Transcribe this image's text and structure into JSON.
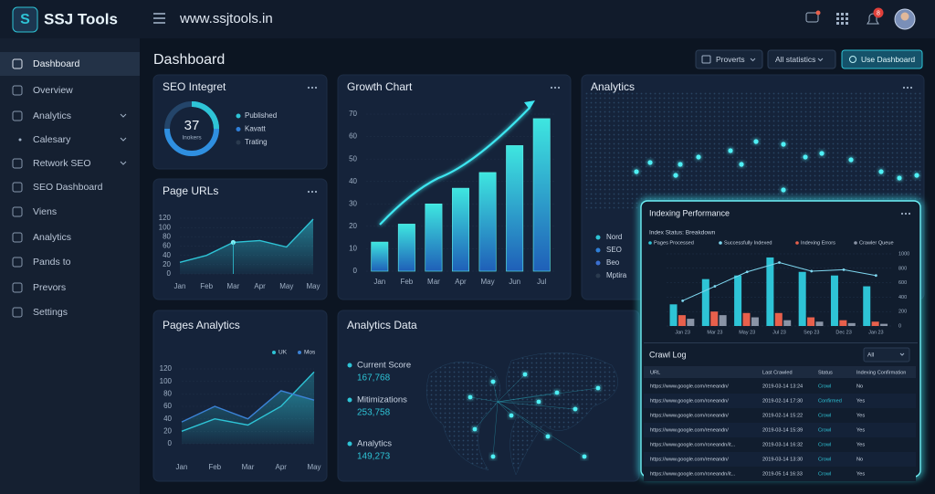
{
  "header": {
    "logo": "SSJ Tools",
    "url": "www.ssjtools.in",
    "notifications": 8
  },
  "sidebar": {
    "items": [
      "Dashboard",
      "Overview",
      "Analytics",
      "Calesary",
      "Retwork SEO",
      "SEO Dashboard",
      "Viens",
      "Analytics",
      "Pands to",
      "Prevors",
      "Settings"
    ]
  },
  "page": {
    "title": "Dashboard",
    "filters": [
      "Proverts",
      "All statistics"
    ],
    "action": "Use Dashboard"
  },
  "seo_integret": {
    "title": "SEO Integret",
    "score": 37,
    "score_label": "Inokers",
    "legend": [
      {
        "name": "Published",
        "color": "#2ec4d6"
      },
      {
        "name": "Kavatt",
        "color": "#2f7fd8"
      },
      {
        "name": "Trating",
        "color": "#2a3a4e"
      }
    ]
  },
  "page_urls": {
    "chart_data": {
      "type": "area",
      "title": "Page URLs",
      "categories": [
        "Jan",
        "Feb",
        "Mar",
        "Apr",
        "May",
        "May"
      ],
      "values": [
        25,
        40,
        68,
        72,
        58,
        118
      ],
      "color": "#2ec4d6",
      "ylim": [
        0,
        120
      ],
      "yticks": [
        0,
        20,
        40,
        60,
        80,
        100,
        120
      ]
    }
  },
  "growth_chart": {
    "chart_data": {
      "type": "bar",
      "title": "Growth Chart",
      "categories": [
        "Jan",
        "Feb",
        "Mar",
        "Apr",
        "May",
        "Jun",
        "Jul"
      ],
      "values": [
        13,
        21,
        30,
        37,
        44,
        56,
        68
      ],
      "color": "#2ec4d6",
      "ylim": [
        0,
        70
      ],
      "yticks": [
        0,
        10,
        20,
        30,
        40,
        50,
        60,
        70
      ]
    }
  },
  "analytics_map": {
    "title": "Analytics",
    "legend": [
      {
        "name": "Nord",
        "color": "#2ec4d6"
      },
      {
        "name": "SEO",
        "color": "#2f7fd8"
      },
      {
        "name": "Beo",
        "color": "#3b6fd0"
      },
      {
        "name": "Mptira",
        "color": "#2a3a4e"
      }
    ]
  },
  "pages_analytics": {
    "chart_data": {
      "type": "line",
      "title": "Pages Analytics",
      "categories": [
        "Jan",
        "Feb",
        "Mar",
        "Apr",
        "May"
      ],
      "series": [
        {
          "name": "UK",
          "color": "#2ec4d6",
          "values": [
            20,
            40,
            30,
            60,
            115
          ]
        },
        {
          "name": "Mos",
          "color": "#3b82d6",
          "values": [
            35,
            60,
            40,
            85,
            70
          ]
        }
      ],
      "ylim": [
        0,
        120
      ],
      "yticks": [
        0,
        20,
        40,
        60,
        80,
        100,
        120
      ]
    }
  },
  "analytics_data": {
    "title": "Analytics Data",
    "stats": [
      {
        "label": "Current Score",
        "value": "167,768"
      },
      {
        "label": "Mitimizations",
        "value": "253,758"
      },
      {
        "label": "Analytics",
        "value": "149,273"
      }
    ]
  },
  "indexing_performance": {
    "chart_data": {
      "type": "bar-line",
      "title": "Indexing Performance",
      "subtitle": "Index Status: Breakdown",
      "categories": [
        "Jan 23",
        "Mar 23",
        "May 23",
        "Jul 23",
        "Sep 23",
        "Dec 23",
        "Jan 23"
      ],
      "series": [
        {
          "name": "Pages Processed",
          "color": "#2ec4d6",
          "values": [
            300,
            650,
            700,
            950,
            750,
            700,
            550
          ]
        },
        {
          "name": "Successfully Indexed",
          "color": "#7fd8f0",
          "type": "line",
          "values": [
            350,
            550,
            750,
            880,
            760,
            780,
            700
          ]
        },
        {
          "name": "Indexing Errors",
          "color": "#e8604c",
          "values": [
            150,
            200,
            180,
            180,
            120,
            80,
            60
          ]
        },
        {
          "name": "Crawler Queue",
          "color": "#8a94a6",
          "values": [
            100,
            150,
            120,
            80,
            60,
            40,
            30
          ]
        }
      ],
      "ylim": [
        0,
        1000
      ],
      "yticks": [
        0,
        200,
        400,
        600,
        800,
        1000
      ]
    }
  },
  "crawl_log": {
    "title": "Crawl Log",
    "filter": "All",
    "columns": [
      "URL",
      "Last Crawled",
      "Status",
      "Indexing Confirmation"
    ],
    "rows": [
      [
        "https://www.google.com/reneandn/",
        "2019-03-14 13:24",
        "Crowl",
        "No"
      ],
      [
        "https://www.google.com/roneandn/",
        "2019-02-14 17:30",
        "Confirmed",
        "Yes"
      ],
      [
        "https://www.google.com/roneandn/",
        "2019-02-14 15:22",
        "Crowl",
        "Yes"
      ],
      [
        "https://www.google.com/reneandn/",
        "2019-03-14 15:39",
        "Crowl",
        "Yes"
      ],
      [
        "https://www.google.com/roneandn/it...",
        "2019-03-14 16:32",
        "Crowl",
        "Yes"
      ],
      [
        "https://www.google.com/reneandn/",
        "2019-03-14 13:30",
        "Crowl",
        "No"
      ],
      [
        "https://www.google.com/roneandn/it...",
        "2019-05 14 16:33",
        "Crowl",
        "Yes"
      ]
    ]
  }
}
